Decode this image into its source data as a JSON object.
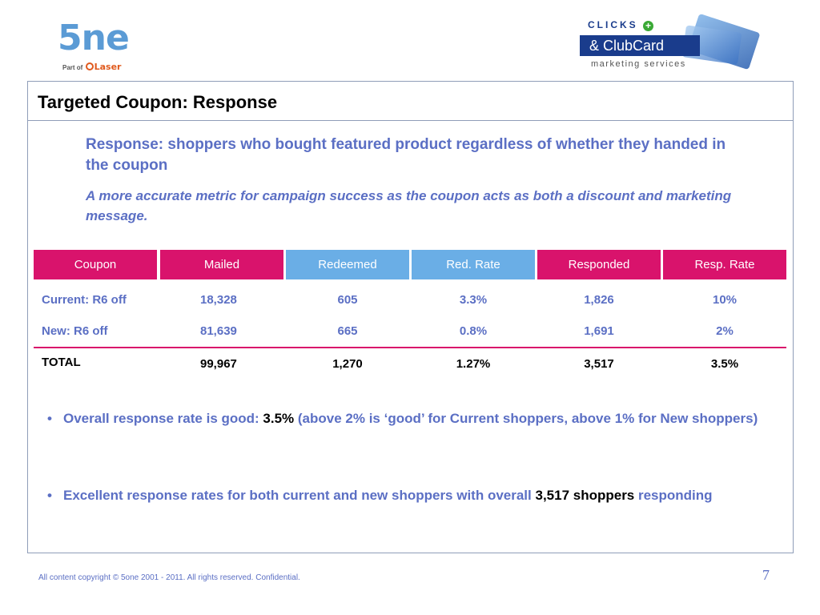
{
  "logos": {
    "left_word": "5ne",
    "left_part_of": "Part of",
    "left_laser_a": "L",
    "left_laser_b": "ser",
    "right_top": "CLICKS",
    "right_cross": "+",
    "right_box": "& ClubCard",
    "right_sub": "marketing services"
  },
  "title": "Targeted Coupon: Response",
  "lead": "Response: shoppers who bought featured product regardless of whether they handed in the coupon",
  "sub_lead": "A more accurate metric for campaign success as the coupon acts as both a discount and marketing message.",
  "table": {
    "headers": [
      "Coupon",
      "Mailed",
      "Redeemed",
      "Red. Rate",
      "Responded",
      "Resp. Rate"
    ],
    "header_colors": [
      "#d9136c",
      "#d9136c",
      "#6aaee6",
      "#6aaee6",
      "#d9136c",
      "#d9136c"
    ],
    "rows": [
      [
        "Current: R6 off",
        "18,328",
        "605",
        "3.3%",
        "1,826",
        "10%"
      ],
      [
        "New: R6 off",
        "81,639",
        "665",
        "0.8%",
        "1,691",
        "2%"
      ]
    ],
    "total": [
      "TOTAL",
      "99,967",
      "1,270",
      "1.27%",
      "3,517",
      "3.5%"
    ]
  },
  "bullets": {
    "b1_pre": "Overall response rate is good: ",
    "b1_hl": "3.5%",
    "b1_post": " (above 2% is ‘good’ for Current shoppers, above 1% for New shoppers)",
    "b2_pre": "Excellent response rates for both current and new shoppers with overall ",
    "b2_hl": "3,517 shoppers",
    "b2_post": " responding"
  },
  "footer": "All content copyright © 5one 2001 - 2011. All rights reserved. Confidential.",
  "page_number": "7"
}
